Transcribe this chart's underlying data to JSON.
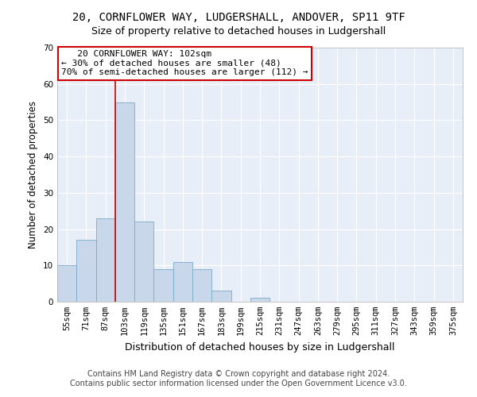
{
  "title": "20, CORNFLOWER WAY, LUDGERSHALL, ANDOVER, SP11 9TF",
  "subtitle": "Size of property relative to detached houses in Ludgershall",
  "xlabel": "Distribution of detached houses by size in Ludgershall",
  "ylabel": "Number of detached properties",
  "categories": [
    "55sqm",
    "71sqm",
    "87sqm",
    "103sqm",
    "119sqm",
    "135sqm",
    "151sqm",
    "167sqm",
    "183sqm",
    "199sqm",
    "215sqm",
    "231sqm",
    "247sqm",
    "263sqm",
    "279sqm",
    "295sqm",
    "311sqm",
    "327sqm",
    "343sqm",
    "359sqm",
    "375sqm"
  ],
  "values": [
    10,
    17,
    23,
    55,
    22,
    9,
    11,
    9,
    3,
    0,
    1,
    0,
    0,
    0,
    0,
    0,
    0,
    0,
    0,
    0,
    0
  ],
  "bar_color": "#c8d8ea",
  "bar_edge_color": "#7aaac8",
  "background_color": "#e8eef8",
  "grid_color": "#ffffff",
  "fig_background": "#ffffff",
  "red_line_index": 3,
  "annotation_line1": "   20 CORNFLOWER WAY: 102sqm",
  "annotation_line2": "← 30% of detached houses are smaller (48)",
  "annotation_line3": "70% of semi-detached houses are larger (112) →",
  "annotation_box_color": "#ffffff",
  "annotation_box_edge_color": "#cc0000",
  "ylim": [
    0,
    70
  ],
  "yticks": [
    0,
    10,
    20,
    30,
    40,
    50,
    60,
    70
  ],
  "footer1": "Contains HM Land Registry data © Crown copyright and database right 2024.",
  "footer2": "Contains public sector information licensed under the Open Government Licence v3.0.",
  "title_fontsize": 10,
  "subtitle_fontsize": 9,
  "xlabel_fontsize": 9,
  "ylabel_fontsize": 8.5,
  "tick_fontsize": 7.5,
  "annotation_fontsize": 8,
  "footer_fontsize": 7
}
